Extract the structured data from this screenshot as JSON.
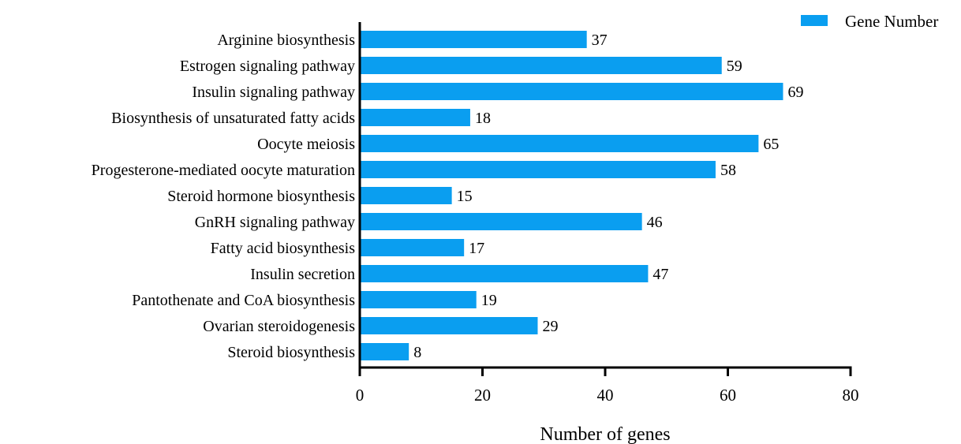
{
  "chart_data": {
    "type": "bar",
    "orientation": "horizontal",
    "categories": [
      "Arginine biosynthesis",
      "Estrogen signaling pathway",
      "Insulin signaling pathway",
      "Biosynthesis of unsaturated fatty acids",
      "Oocyte meiosis",
      "Progesterone-mediated oocyte maturation",
      "Steroid hormone biosynthesis",
      "GnRH signaling pathway",
      "Fatty acid biosynthesis",
      "Insulin secretion",
      "Pantothenate and CoA biosynthesis",
      "Ovarian steroidogenesis",
      "Steroid biosynthesis"
    ],
    "series": [
      {
        "name": "Gene Number",
        "color": "#0a9ef0",
        "values": [
          37,
          59,
          69,
          18,
          65,
          58,
          15,
          46,
          17,
          47,
          19,
          29,
          8
        ]
      }
    ],
    "xlabel": "Number of genes",
    "ylabel": "",
    "xlim": [
      0,
      80
    ],
    "xticks": [
      0,
      20,
      40,
      60,
      80
    ],
    "grid": false,
    "legend_position": "top-right"
  }
}
